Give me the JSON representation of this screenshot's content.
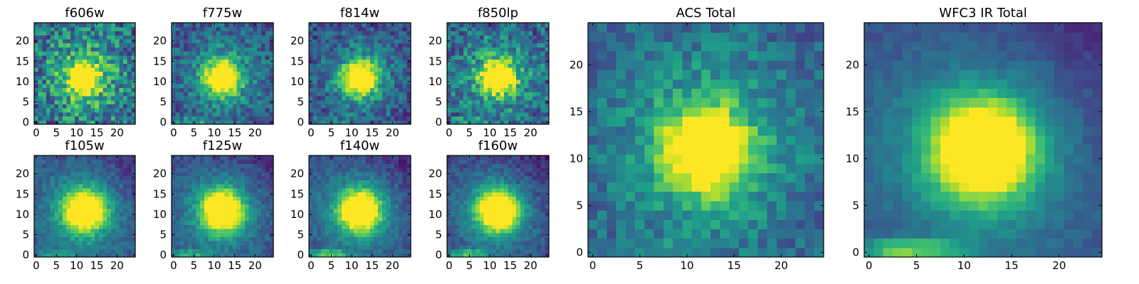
{
  "chart_data": [
    {
      "type": "heatmap",
      "title": "f606w",
      "xlim": [
        0,
        24
      ],
      "ylim": [
        0,
        24
      ],
      "xticks": [
        0,
        5,
        10,
        15,
        20
      ],
      "yticks": [
        0,
        5,
        10,
        15,
        20
      ],
      "peak": [
        12,
        11
      ],
      "sigma": 2.6,
      "noise": 0.55,
      "background": 0.35,
      "streak": 0,
      "tilt": 0
    },
    {
      "type": "heatmap",
      "title": "f775w",
      "xlim": [
        0,
        24
      ],
      "ylim": [
        0,
        24
      ],
      "xticks": [
        0,
        5,
        10,
        15,
        20
      ],
      "yticks": [
        0,
        5,
        10,
        15,
        20
      ],
      "peak": [
        12,
        11
      ],
      "sigma": 2.6,
      "noise": 0.35,
      "background": 0.25,
      "streak": 0.25,
      "tilt": 0
    },
    {
      "type": "heatmap",
      "title": "f814w",
      "xlim": [
        0,
        24
      ],
      "ylim": [
        0,
        24
      ],
      "xticks": [
        0,
        5,
        10,
        15,
        20
      ],
      "yticks": [
        0,
        5,
        10,
        15,
        20
      ],
      "peak": [
        12,
        11
      ],
      "sigma": 2.6,
      "noise": 0.35,
      "background": 0.22,
      "streak": 0.2,
      "tilt": 0
    },
    {
      "type": "heatmap",
      "title": "f850lp",
      "xlim": [
        0,
        24
      ],
      "ylim": [
        0,
        24
      ],
      "xticks": [
        0,
        5,
        10,
        15,
        20
      ],
      "yticks": [
        0,
        5,
        10,
        15,
        20
      ],
      "peak": [
        12,
        11
      ],
      "sigma": 2.6,
      "noise": 0.45,
      "background": 0.3,
      "streak": 0.15,
      "tilt": 0
    },
    {
      "type": "heatmap",
      "title": "f105w",
      "xlim": [
        0,
        24
      ],
      "ylim": [
        0,
        24
      ],
      "xticks": [
        0,
        5,
        10,
        15,
        20
      ],
      "yticks": [
        0,
        5,
        10,
        15,
        20
      ],
      "peak": [
        12,
        11
      ],
      "sigma": 3.4,
      "noise": 0.18,
      "background": 0.22,
      "streak": 0.25,
      "tilt": 0.15
    },
    {
      "type": "heatmap",
      "title": "f125w",
      "xlim": [
        0,
        24
      ],
      "ylim": [
        0,
        24
      ],
      "xticks": [
        0,
        5,
        10,
        15,
        20
      ],
      "yticks": [
        0,
        5,
        10,
        15,
        20
      ],
      "peak": [
        12,
        11
      ],
      "sigma": 3.4,
      "noise": 0.18,
      "background": 0.2,
      "streak": 0.35,
      "tilt": 0.15
    },
    {
      "type": "heatmap",
      "title": "f140w",
      "xlim": [
        0,
        24
      ],
      "ylim": [
        0,
        24
      ],
      "xticks": [
        0,
        5,
        10,
        15,
        20
      ],
      "yticks": [
        0,
        5,
        10,
        15,
        20
      ],
      "peak": [
        12,
        11
      ],
      "sigma": 3.4,
      "noise": 0.18,
      "background": 0.2,
      "streak": 0.45,
      "tilt": 0.15
    },
    {
      "type": "heatmap",
      "title": "f160w",
      "xlim": [
        0,
        24
      ],
      "ylim": [
        0,
        24
      ],
      "xticks": [
        0,
        5,
        10,
        15,
        20
      ],
      "yticks": [
        0,
        5,
        10,
        15,
        20
      ],
      "peak": [
        12,
        11
      ],
      "sigma": 3.4,
      "noise": 0.18,
      "background": 0.18,
      "streak": 0.45,
      "tilt": 0.15
    },
    {
      "type": "heatmap",
      "title": "ACS Total",
      "xlim": [
        0,
        24
      ],
      "ylim": [
        0,
        24
      ],
      "xticks": [
        0,
        5,
        10,
        15,
        20
      ],
      "yticks": [
        0,
        5,
        10,
        15,
        20
      ],
      "peak": [
        12,
        11
      ],
      "sigma": 2.8,
      "noise": 0.28,
      "background": 0.3,
      "streak": 0.12,
      "tilt": 0
    },
    {
      "type": "heatmap",
      "title": "WFC3 IR Total",
      "xlim": [
        0,
        24
      ],
      "ylim": [
        0,
        24
      ],
      "xticks": [
        0,
        5,
        10,
        15,
        20
      ],
      "yticks": [
        0,
        5,
        10,
        15,
        20
      ],
      "peak": [
        12,
        11
      ],
      "sigma": 3.6,
      "noise": 0.1,
      "background": 0.2,
      "streak": 0.5,
      "tilt": 0.15
    }
  ],
  "colors": {
    "colormap": "viridis",
    "viridis_stops": [
      "#440154",
      "#482878",
      "#3e4a89",
      "#31688e",
      "#26828e",
      "#1f9e89",
      "#35b779",
      "#6ece58",
      "#b5de2b",
      "#fde725"
    ]
  }
}
